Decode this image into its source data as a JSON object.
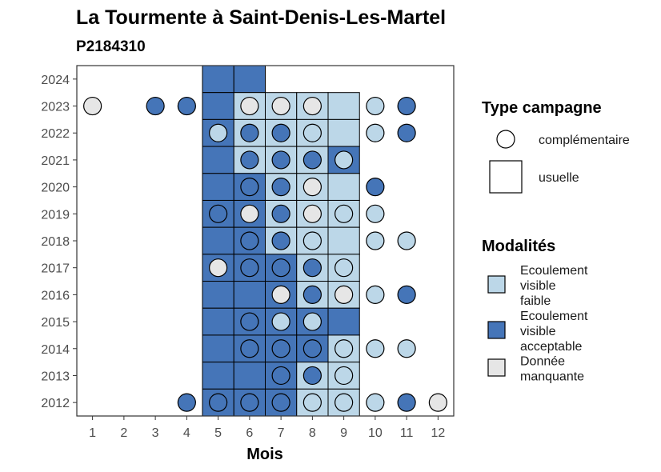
{
  "chart_data": {
    "type": "heatmap",
    "title": "La Tourmente à Saint-Denis-Les-Martel",
    "subtitle": "P2184310",
    "xlabel": "Mois",
    "ylabel": "",
    "x_ticks": [
      "1",
      "2",
      "3",
      "4",
      "5",
      "6",
      "7",
      "8",
      "9",
      "10",
      "11",
      "12"
    ],
    "y_ticks": [
      "2012",
      "2013",
      "2014",
      "2015",
      "2016",
      "2017",
      "2018",
      "2019",
      "2020",
      "2021",
      "2022",
      "2023",
      "2024"
    ],
    "xlim": [
      0.5,
      12.5
    ],
    "ylim": [
      2011.5,
      2024.5
    ],
    "colors": {
      "faible": "#bcd7e8",
      "acceptable": "#4575b8",
      "manquante": "#e6e6e6"
    },
    "legend": {
      "type_title": "Type campagne",
      "type_items": [
        {
          "key": "complementaire",
          "label": "complémentaire",
          "shape": "circle"
        },
        {
          "key": "usuelle",
          "label": "usuelle",
          "shape": "square"
        }
      ],
      "mod_title": "Modalités",
      "mod_items": [
        {
          "key": "faible",
          "lines": [
            "Ecoulement",
            "visible",
            "faible"
          ]
        },
        {
          "key": "acceptable",
          "lines": [
            "Ecoulement",
            "visible",
            "acceptable"
          ]
        },
        {
          "key": "manquante",
          "lines": [
            "Donnée",
            "manquante"
          ]
        }
      ]
    },
    "usuelle": [
      {
        "year": 2024,
        "month": 5,
        "m": "acceptable"
      },
      {
        "year": 2024,
        "month": 6,
        "m": "acceptable"
      },
      {
        "year": 2023,
        "month": 5,
        "m": "acceptable"
      },
      {
        "year": 2023,
        "month": 6,
        "m": "faible"
      },
      {
        "year": 2023,
        "month": 7,
        "m": "faible"
      },
      {
        "year": 2023,
        "month": 8,
        "m": "faible"
      },
      {
        "year": 2023,
        "month": 9,
        "m": "faible"
      },
      {
        "year": 2022,
        "month": 5,
        "m": "acceptable"
      },
      {
        "year": 2022,
        "month": 6,
        "m": "faible"
      },
      {
        "year": 2022,
        "month": 7,
        "m": "faible"
      },
      {
        "year": 2022,
        "month": 8,
        "m": "faible"
      },
      {
        "year": 2022,
        "month": 9,
        "m": "faible"
      },
      {
        "year": 2021,
        "month": 5,
        "m": "acceptable"
      },
      {
        "year": 2021,
        "month": 6,
        "m": "faible"
      },
      {
        "year": 2021,
        "month": 7,
        "m": "faible"
      },
      {
        "year": 2021,
        "month": 8,
        "m": "faible"
      },
      {
        "year": 2021,
        "month": 9,
        "m": "acceptable"
      },
      {
        "year": 2020,
        "month": 5,
        "m": "acceptable"
      },
      {
        "year": 2020,
        "month": 6,
        "m": "acceptable"
      },
      {
        "year": 2020,
        "month": 7,
        "m": "faible"
      },
      {
        "year": 2020,
        "month": 8,
        "m": "faible"
      },
      {
        "year": 2020,
        "month": 9,
        "m": "faible"
      },
      {
        "year": 2019,
        "month": 5,
        "m": "acceptable"
      },
      {
        "year": 2019,
        "month": 6,
        "m": "acceptable"
      },
      {
        "year": 2019,
        "month": 7,
        "m": "faible"
      },
      {
        "year": 2019,
        "month": 8,
        "m": "faible"
      },
      {
        "year": 2019,
        "month": 9,
        "m": "faible"
      },
      {
        "year": 2018,
        "month": 5,
        "m": "acceptable"
      },
      {
        "year": 2018,
        "month": 6,
        "m": "acceptable"
      },
      {
        "year": 2018,
        "month": 7,
        "m": "faible"
      },
      {
        "year": 2018,
        "month": 8,
        "m": "faible"
      },
      {
        "year": 2018,
        "month": 9,
        "m": "faible"
      },
      {
        "year": 2017,
        "month": 5,
        "m": "acceptable"
      },
      {
        "year": 2017,
        "month": 6,
        "m": "acceptable"
      },
      {
        "year": 2017,
        "month": 7,
        "m": "acceptable"
      },
      {
        "year": 2017,
        "month": 8,
        "m": "faible"
      },
      {
        "year": 2017,
        "month": 9,
        "m": "faible"
      },
      {
        "year": 2016,
        "month": 5,
        "m": "acceptable"
      },
      {
        "year": 2016,
        "month": 6,
        "m": "acceptable"
      },
      {
        "year": 2016,
        "month": 7,
        "m": "acceptable"
      },
      {
        "year": 2016,
        "month": 8,
        "m": "faible"
      },
      {
        "year": 2016,
        "month": 9,
        "m": "faible"
      },
      {
        "year": 2015,
        "month": 5,
        "m": "acceptable"
      },
      {
        "year": 2015,
        "month": 6,
        "m": "acceptable"
      },
      {
        "year": 2015,
        "month": 7,
        "m": "acceptable"
      },
      {
        "year": 2015,
        "month": 8,
        "m": "acceptable"
      },
      {
        "year": 2015,
        "month": 9,
        "m": "acceptable"
      },
      {
        "year": 2014,
        "month": 5,
        "m": "acceptable"
      },
      {
        "year": 2014,
        "month": 6,
        "m": "acceptable"
      },
      {
        "year": 2014,
        "month": 7,
        "m": "acceptable"
      },
      {
        "year": 2014,
        "month": 8,
        "m": "acceptable"
      },
      {
        "year": 2014,
        "month": 9,
        "m": "faible"
      },
      {
        "year": 2013,
        "month": 5,
        "m": "acceptable"
      },
      {
        "year": 2013,
        "month": 6,
        "m": "acceptable"
      },
      {
        "year": 2013,
        "month": 7,
        "m": "acceptable"
      },
      {
        "year": 2013,
        "month": 8,
        "m": "faible"
      },
      {
        "year": 2013,
        "month": 9,
        "m": "faible"
      },
      {
        "year": 2012,
        "month": 5,
        "m": "acceptable"
      },
      {
        "year": 2012,
        "month": 6,
        "m": "acceptable"
      },
      {
        "year": 2012,
        "month": 7,
        "m": "acceptable"
      },
      {
        "year": 2012,
        "month": 8,
        "m": "faible"
      },
      {
        "year": 2012,
        "month": 9,
        "m": "faible"
      }
    ],
    "complementaire": [
      {
        "year": 2023,
        "month": 1,
        "m": "manquante"
      },
      {
        "year": 2023,
        "month": 3,
        "m": "acceptable"
      },
      {
        "year": 2023,
        "month": 4,
        "m": "acceptable"
      },
      {
        "year": 2023,
        "month": 6,
        "m": "manquante"
      },
      {
        "year": 2023,
        "month": 7,
        "m": "manquante"
      },
      {
        "year": 2023,
        "month": 8,
        "m": "manquante"
      },
      {
        "year": 2023,
        "month": 10,
        "m": "faible"
      },
      {
        "year": 2023,
        "month": 11,
        "m": "acceptable"
      },
      {
        "year": 2022,
        "month": 5,
        "m": "faible"
      },
      {
        "year": 2022,
        "month": 6,
        "m": "acceptable"
      },
      {
        "year": 2022,
        "month": 7,
        "m": "acceptable"
      },
      {
        "year": 2022,
        "month": 8,
        "m": "faible"
      },
      {
        "year": 2022,
        "month": 10,
        "m": "faible"
      },
      {
        "year": 2022,
        "month": 11,
        "m": "acceptable"
      },
      {
        "year": 2021,
        "month": 6,
        "m": "acceptable"
      },
      {
        "year": 2021,
        "month": 7,
        "m": "acceptable"
      },
      {
        "year": 2021,
        "month": 8,
        "m": "acceptable"
      },
      {
        "year": 2021,
        "month": 9,
        "m": "faible"
      },
      {
        "year": 2020,
        "month": 6,
        "m": "acceptable"
      },
      {
        "year": 2020,
        "month": 7,
        "m": "acceptable"
      },
      {
        "year": 2020,
        "month": 8,
        "m": "manquante"
      },
      {
        "year": 2020,
        "month": 10,
        "m": "acceptable"
      },
      {
        "year": 2019,
        "month": 5,
        "m": "acceptable"
      },
      {
        "year": 2019,
        "month": 6,
        "m": "manquante"
      },
      {
        "year": 2019,
        "month": 7,
        "m": "acceptable"
      },
      {
        "year": 2019,
        "month": 8,
        "m": "manquante"
      },
      {
        "year": 2019,
        "month": 9,
        "m": "faible"
      },
      {
        "year": 2019,
        "month": 10,
        "m": "faible"
      },
      {
        "year": 2018,
        "month": 6,
        "m": "acceptable"
      },
      {
        "year": 2018,
        "month": 7,
        "m": "acceptable"
      },
      {
        "year": 2018,
        "month": 8,
        "m": "faible"
      },
      {
        "year": 2018,
        "month": 10,
        "m": "faible"
      },
      {
        "year": 2018,
        "month": 11,
        "m": "faible"
      },
      {
        "year": 2017,
        "month": 5,
        "m": "manquante"
      },
      {
        "year": 2017,
        "month": 6,
        "m": "acceptable"
      },
      {
        "year": 2017,
        "month": 7,
        "m": "acceptable"
      },
      {
        "year": 2017,
        "month": 8,
        "m": "acceptable"
      },
      {
        "year": 2017,
        "month": 9,
        "m": "faible"
      },
      {
        "year": 2016,
        "month": 7,
        "m": "manquante"
      },
      {
        "year": 2016,
        "month": 8,
        "m": "acceptable"
      },
      {
        "year": 2016,
        "month": 9,
        "m": "manquante"
      },
      {
        "year": 2016,
        "month": 10,
        "m": "faible"
      },
      {
        "year": 2016,
        "month": 11,
        "m": "acceptable"
      },
      {
        "year": 2015,
        "month": 6,
        "m": "acceptable"
      },
      {
        "year": 2015,
        "month": 7,
        "m": "faible"
      },
      {
        "year": 2015,
        "month": 8,
        "m": "faible"
      },
      {
        "year": 2014,
        "month": 6,
        "m": "acceptable"
      },
      {
        "year": 2014,
        "month": 7,
        "m": "acceptable"
      },
      {
        "year": 2014,
        "month": 8,
        "m": "acceptable"
      },
      {
        "year": 2014,
        "month": 9,
        "m": "faible"
      },
      {
        "year": 2014,
        "month": 10,
        "m": "faible"
      },
      {
        "year": 2014,
        "month": 11,
        "m": "faible"
      },
      {
        "year": 2013,
        "month": 7,
        "m": "acceptable"
      },
      {
        "year": 2013,
        "month": 8,
        "m": "acceptable"
      },
      {
        "year": 2013,
        "month": 9,
        "m": "faible"
      },
      {
        "year": 2012,
        "month": 4,
        "m": "acceptable"
      },
      {
        "year": 2012,
        "month": 5,
        "m": "acceptable"
      },
      {
        "year": 2012,
        "month": 6,
        "m": "acceptable"
      },
      {
        "year": 2012,
        "month": 7,
        "m": "acceptable"
      },
      {
        "year": 2012,
        "month": 8,
        "m": "faible"
      },
      {
        "year": 2012,
        "month": 9,
        "m": "faible"
      },
      {
        "year": 2012,
        "month": 10,
        "m": "faible"
      },
      {
        "year": 2012,
        "month": 11,
        "m": "acceptable"
      },
      {
        "year": 2012,
        "month": 12,
        "m": "manquante"
      }
    ]
  }
}
